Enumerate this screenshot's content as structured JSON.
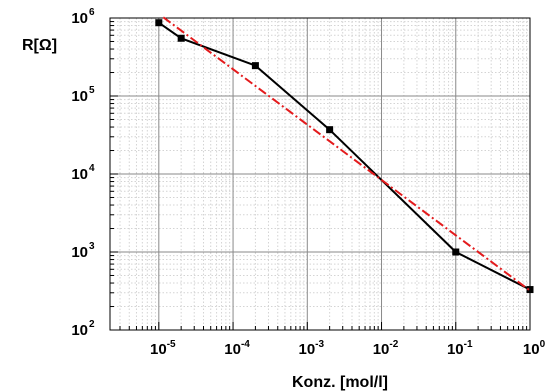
{
  "chart_data": {
    "type": "line",
    "xlabel": "Konz. [mol/l]",
    "ylabel": "R[Ω]",
    "x_scale": "log",
    "y_scale": "log",
    "xlim": [
      2.2e-06,
      1
    ],
    "ylim": [
      100,
      1000000
    ],
    "grid": true,
    "x_ticks": [
      {
        "base": "10",
        "exp": "-5",
        "value": 1e-05
      },
      {
        "base": "10",
        "exp": "-4",
        "value": 0.0001
      },
      {
        "base": "10",
        "exp": "-3",
        "value": 0.001
      },
      {
        "base": "10",
        "exp": "-2",
        "value": 0.01
      },
      {
        "base": "10",
        "exp": "-1",
        "value": 0.1
      },
      {
        "base": "10",
        "exp": "0",
        "value": 1
      }
    ],
    "y_ticks": [
      {
        "base": "10",
        "exp": "2",
        "value": 100
      },
      {
        "base": "10",
        "exp": "3",
        "value": 1000
      },
      {
        "base": "10",
        "exp": "4",
        "value": 10000
      },
      {
        "base": "10",
        "exp": "5",
        "value": 100000
      },
      {
        "base": "10",
        "exp": "6",
        "value": 1000000
      }
    ],
    "series": [
      {
        "style": "solid-square-markers",
        "color": "#000000",
        "x": [
          1e-05,
          2e-05,
          0.0002,
          0.002,
          0.1,
          1
        ],
        "y": [
          870000,
          550000,
          245000,
          37000,
          1000,
          330
        ]
      },
      {
        "style": "dash-dot-fit",
        "color": "#e31a1c",
        "x": [
          1.15e-05,
          1
        ],
        "y": [
          1020000,
          320
        ]
      }
    ]
  }
}
